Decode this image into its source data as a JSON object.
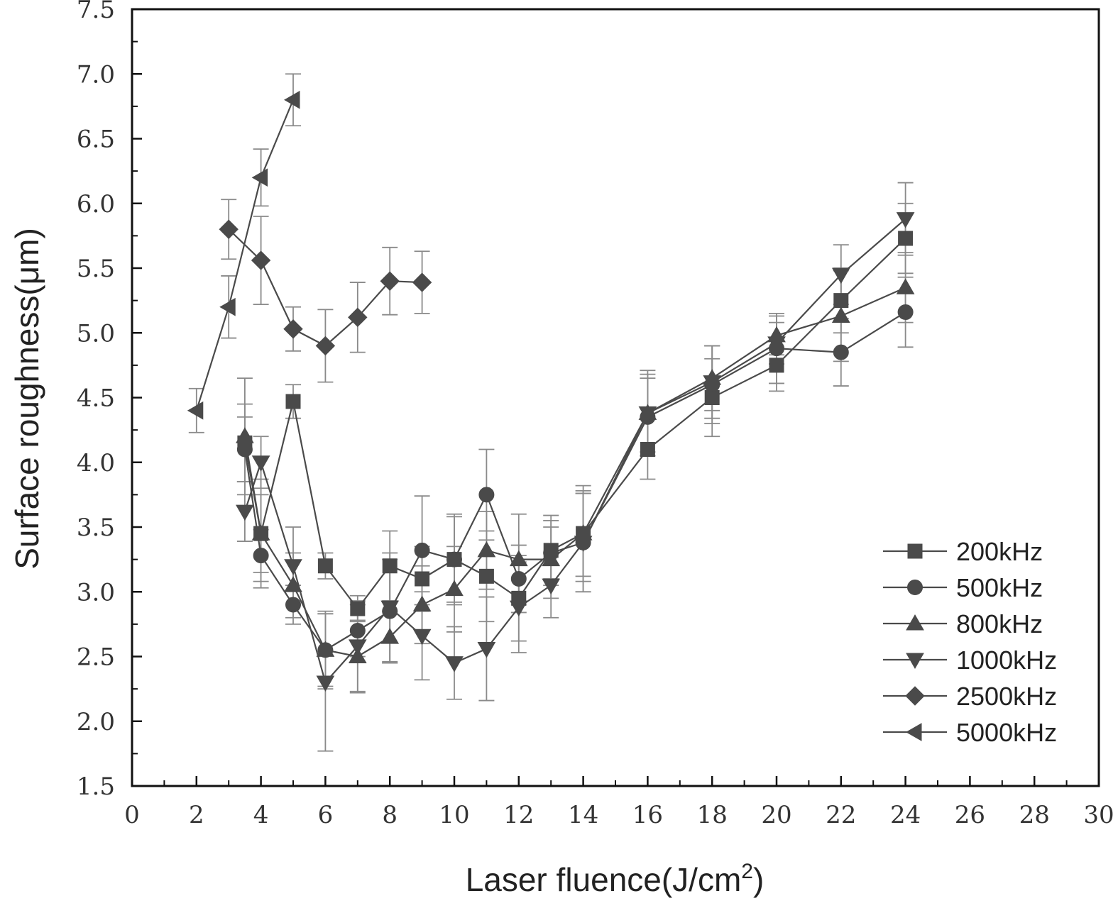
{
  "chart_data": {
    "type": "line",
    "xlabel": "Laser fluence(J/cm",
    "xlabel_sup": "2",
    "xlabel_end": ")",
    "ylabel": "Surface roughness(μm)",
    "xlim": [
      0,
      30
    ],
    "ylim": [
      1.5,
      7.5
    ],
    "x_ticks": [
      "0",
      "2",
      "4",
      "6",
      "8",
      "10",
      "12",
      "14",
      "16",
      "18",
      "20",
      "22",
      "24",
      "26",
      "28",
      "30"
    ],
    "y_ticks": [
      "1.5",
      "2.0",
      "2.5",
      "3.0",
      "3.5",
      "4.0",
      "4.5",
      "5.0",
      "5.5",
      "6.0",
      "6.5",
      "7.0",
      "7.5"
    ],
    "grid": false,
    "legend_position": "bottom-right",
    "series": [
      {
        "name": "200kHz",
        "marker": "square",
        "x": [
          3.5,
          4,
          5,
          6,
          7,
          8,
          9,
          10,
          11,
          12,
          13,
          14,
          16,
          18,
          20,
          22,
          24
        ],
        "y": [
          4.15,
          3.45,
          4.47,
          3.2,
          2.87,
          3.2,
          3.1,
          3.25,
          3.12,
          2.95,
          3.32,
          3.45,
          4.1,
          4.5,
          4.75,
          5.25,
          5.73
        ],
        "err": [
          0.3,
          0.3,
          0.13,
          0.1,
          0.1,
          0.27,
          0.25,
          0.35,
          0.35,
          0.33,
          0.27,
          0.37,
          0.23,
          0.3,
          0.2,
          0.25,
          0.27
        ]
      },
      {
        "name": "500kHz",
        "marker": "circle",
        "x": [
          3.5,
          4,
          5,
          6,
          7,
          8,
          9,
          10,
          11,
          12,
          13,
          14,
          16,
          18,
          20,
          22,
          24
        ],
        "y": [
          4.1,
          3.28,
          2.9,
          2.55,
          2.7,
          2.85,
          3.32,
          3.25,
          3.75,
          3.1,
          3.3,
          3.38,
          4.35,
          4.6,
          4.88,
          4.85,
          5.16
        ],
        "err": [
          0.25,
          0.2,
          0.15,
          0.28,
          0.2,
          0.4,
          0.42,
          0.33,
          0.35,
          0.26,
          0.2,
          0.38,
          0.3,
          0.3,
          0.27,
          0.26,
          0.27
        ]
      },
      {
        "name": "800kHz",
        "marker": "triangle-up",
        "x": [
          3.5,
          4,
          5,
          6,
          7,
          8,
          9,
          10,
          11,
          12,
          13,
          14,
          16,
          18,
          20,
          22,
          24
        ],
        "y": [
          4.2,
          3.45,
          3.05,
          2.55,
          2.5,
          2.65,
          2.9,
          3.02,
          3.32,
          3.25,
          3.25,
          3.45,
          4.38,
          4.65,
          4.98,
          5.13,
          5.35
        ],
        "err": [
          0.45,
          0.42,
          0.25,
          0.3,
          0.28,
          0.2,
          0.3,
          0.33,
          0.3,
          0.35,
          0.3,
          0.33,
          0.3,
          0.25,
          0.15,
          0.35,
          0.27
        ]
      },
      {
        "name": "1000kHz",
        "marker": "triangle-down",
        "x": [
          3.5,
          4,
          5,
          6,
          7,
          8,
          9,
          10,
          11,
          12,
          13,
          14,
          16,
          18,
          20,
          22,
          24
        ],
        "y": [
          3.62,
          4.0,
          3.2,
          2.3,
          2.58,
          2.88,
          2.66,
          2.45,
          2.56,
          2.88,
          3.05,
          3.38,
          4.38,
          4.62,
          4.92,
          5.45,
          5.88
        ],
        "err": [
          0.23,
          0.2,
          0.3,
          0.53,
          0.35,
          0.42,
          0.34,
          0.28,
          0.4,
          0.35,
          0.25,
          0.38,
          0.33,
          0.28,
          0.16,
          0.23,
          0.28
        ]
      },
      {
        "name": "2500kHz",
        "marker": "diamond",
        "x": [
          3,
          4,
          5,
          6,
          7,
          8,
          9
        ],
        "y": [
          5.8,
          5.56,
          5.03,
          4.9,
          5.12,
          5.4,
          5.39
        ],
        "err": [
          0.23,
          0.34,
          0.17,
          0.28,
          0.27,
          0.26,
          0.24
        ]
      },
      {
        "name": "5000kHz",
        "marker": "triangle-left",
        "x": [
          2,
          3,
          4,
          5
        ],
        "y": [
          4.4,
          5.2,
          6.2,
          6.8
        ],
        "err": [
          0.17,
          0.24,
          0.22,
          0.2
        ]
      }
    ]
  },
  "colors": {
    "marker": "#4a4a4a",
    "line": "#4a4a4a",
    "errorbar": "#8a8a8a",
    "axis": "#111111"
  }
}
